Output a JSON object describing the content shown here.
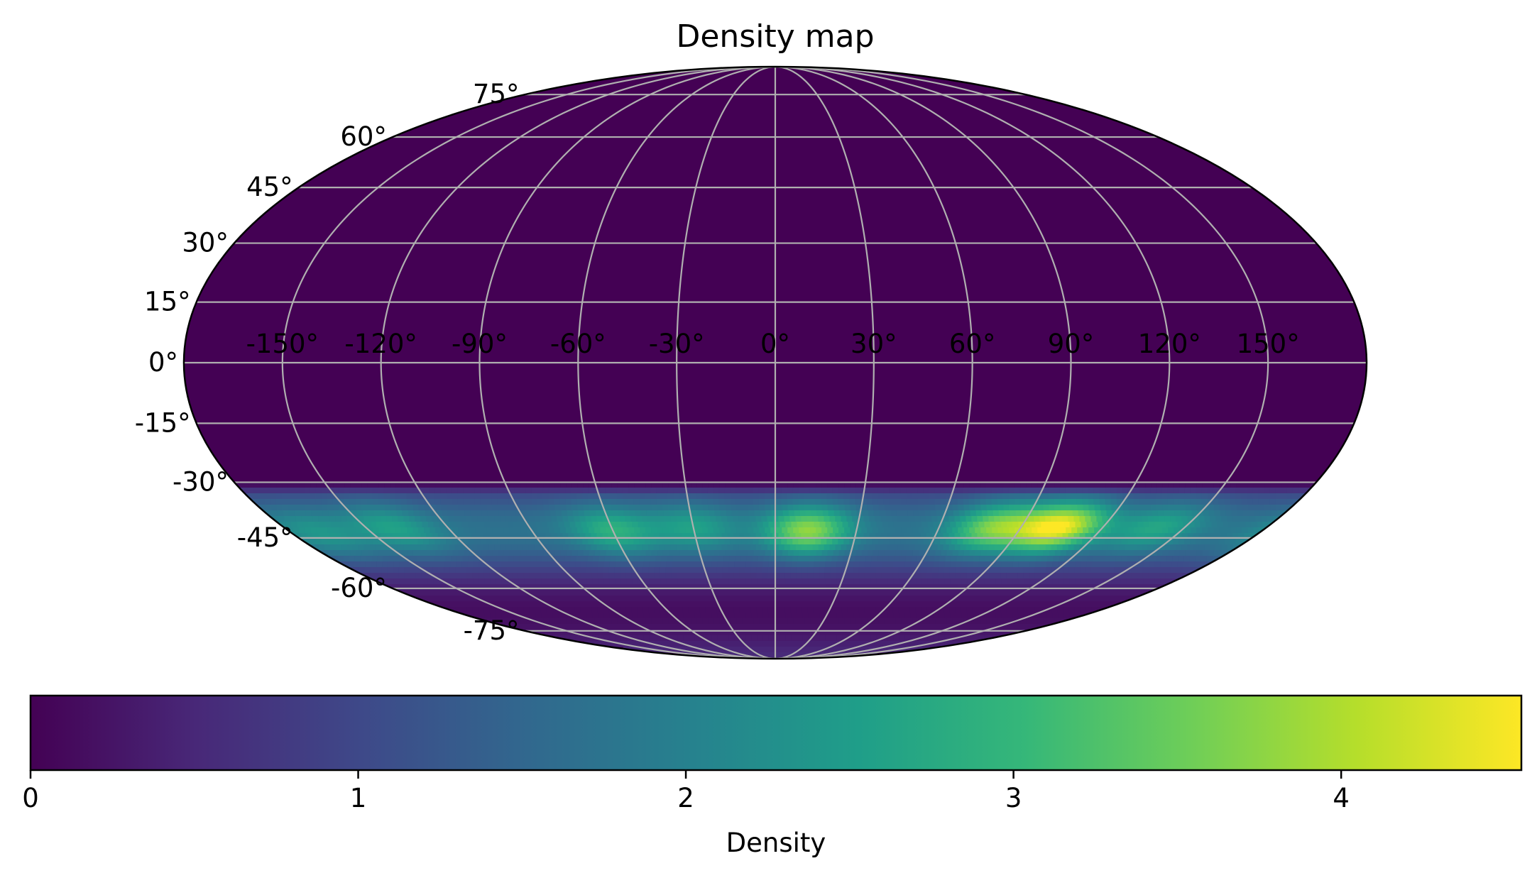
{
  "chart_data": {
    "type": "heatmap",
    "projection": "mollweide",
    "title": "Density map",
    "lon_ticks": [
      -150,
      -120,
      -90,
      -60,
      -30,
      0,
      30,
      60,
      90,
      120,
      150
    ],
    "lon_tick_labels": [
      "-150°",
      "-120°",
      "-90°",
      "-60°",
      "-30°",
      "0°",
      "30°",
      "60°",
      "90°",
      "120°",
      "150°"
    ],
    "lat_ticks": [
      75,
      60,
      45,
      30,
      15,
      0,
      -15,
      -30,
      -45,
      -60,
      -75
    ],
    "lat_tick_labels": [
      "75°",
      "60°",
      "45°",
      "30°",
      "15°",
      "0°",
      "-15°",
      "-30°",
      "-45°",
      "-60°",
      "-75°"
    ],
    "lon_range": [
      -180,
      180
    ],
    "lat_range": [
      -90,
      90
    ],
    "grid": true,
    "grid_color": "#b0b0b0",
    "colormap": "viridis",
    "background_value": 0,
    "density_band": {
      "lat_range": [
        -90,
        -30
      ],
      "base_level": 1.7,
      "peak_latitude": -43,
      "lat_spread_deg": 7
    },
    "density_peaks": [
      {
        "lon": 12,
        "lat": -43,
        "value": 3.8
      },
      {
        "lon": 80,
        "lat": -42,
        "value": 3.6
      },
      {
        "lon": 104,
        "lat": -42,
        "value": 4.5
      },
      {
        "lon": -60,
        "lat": -43,
        "value": 2.9
      },
      {
        "lon": -30,
        "lat": -42,
        "value": 2.6
      },
      {
        "lon": -140,
        "lat": -42,
        "value": 2.6
      },
      {
        "lon": -170,
        "lat": -44,
        "value": 2.4
      },
      {
        "lon": 140,
        "lat": -42,
        "value": 2.7
      }
    ],
    "colorbar": {
      "label": "Density",
      "range": [
        0,
        4.55
      ],
      "ticks": [
        0,
        1,
        2,
        3,
        4
      ],
      "tick_labels": [
        "0",
        "1",
        "2",
        "3",
        "4"
      ],
      "orientation": "horizontal",
      "position": "bottom"
    }
  },
  "colors": {
    "viridis_stops": [
      "#440154",
      "#482878",
      "#3e4989",
      "#31688e",
      "#26828e",
      "#1f9e89",
      "#35b779",
      "#6ece58",
      "#b5de2b",
      "#fde725"
    ]
  }
}
